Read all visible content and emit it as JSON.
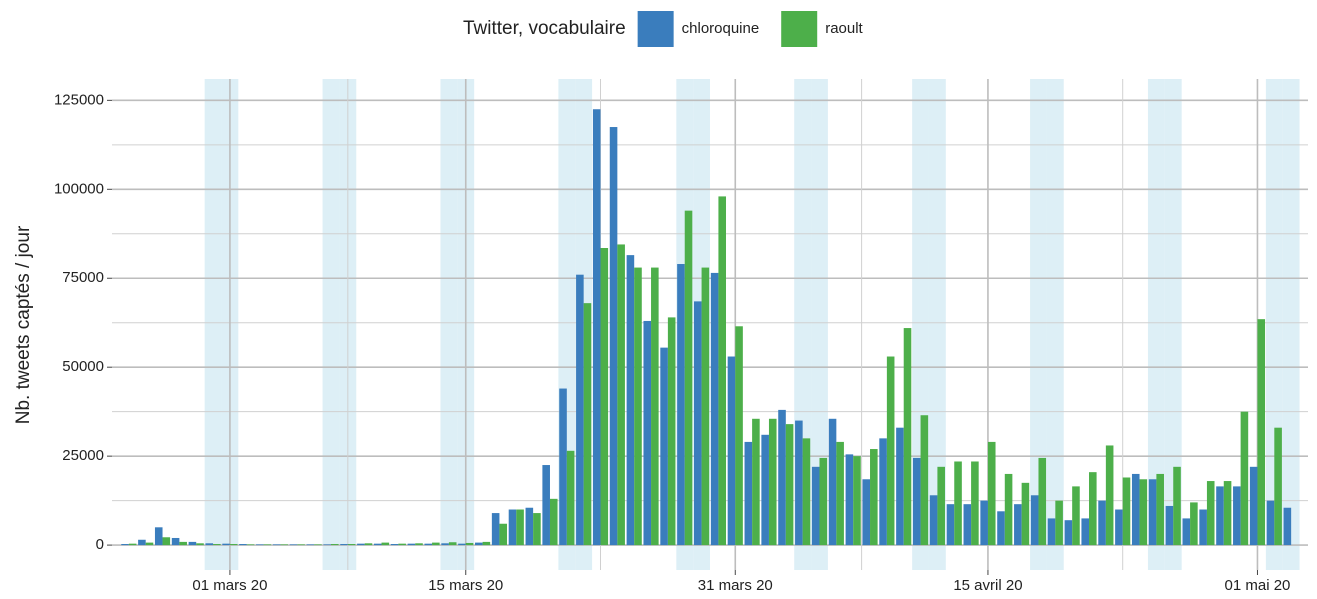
{
  "chart_data": {
    "type": "bar",
    "legend_title": "Twitter, vocabulaire",
    "y_label": "Nb. tweets captés / jour",
    "legend_position": "top",
    "grid": true,
    "weekend_shading": true,
    "x": [
      "2020-02-24",
      "2020-02-25",
      "2020-02-26",
      "2020-02-27",
      "2020-02-28",
      "2020-02-29",
      "2020-03-01",
      "2020-03-02",
      "2020-03-03",
      "2020-03-04",
      "2020-03-05",
      "2020-03-06",
      "2020-03-07",
      "2020-03-08",
      "2020-03-09",
      "2020-03-10",
      "2020-03-11",
      "2020-03-12",
      "2020-03-13",
      "2020-03-14",
      "2020-03-15",
      "2020-03-16",
      "2020-03-17",
      "2020-03-18",
      "2020-03-19",
      "2020-03-20",
      "2020-03-21",
      "2020-03-22",
      "2020-03-23",
      "2020-03-24",
      "2020-03-25",
      "2020-03-26",
      "2020-03-27",
      "2020-03-28",
      "2020-03-29",
      "2020-03-30",
      "2020-03-31",
      "2020-04-01",
      "2020-04-02",
      "2020-04-03",
      "2020-04-04",
      "2020-04-05",
      "2020-04-06",
      "2020-04-07",
      "2020-04-08",
      "2020-04-09",
      "2020-04-10",
      "2020-04-11",
      "2020-04-12",
      "2020-04-13",
      "2020-04-14",
      "2020-04-15",
      "2020-04-16",
      "2020-04-17",
      "2020-04-18",
      "2020-04-19",
      "2020-04-20",
      "2020-04-21",
      "2020-04-22",
      "2020-04-23",
      "2020-04-24",
      "2020-04-25",
      "2020-04-26",
      "2020-04-27",
      "2020-04-28",
      "2020-04-29",
      "2020-04-30",
      "2020-05-01",
      "2020-05-02",
      "2020-05-03"
    ],
    "series": [
      {
        "name": "chloroquine",
        "color": "#3a7dbd",
        "values": [
          300,
          1500,
          5000,
          2000,
          900,
          500,
          400,
          300,
          200,
          200,
          200,
          200,
          200,
          300,
          400,
          400,
          300,
          400,
          400,
          500,
          400,
          700,
          9000,
          10000,
          10500,
          22500,
          44000,
          76000,
          122500,
          117500,
          81500,
          63000,
          55500,
          79000,
          68500,
          76500,
          53000,
          29000,
          31000,
          38000,
          35000,
          22000,
          35500,
          25500,
          18500,
          30000,
          33000,
          24500,
          14000,
          11500,
          11500,
          12500,
          9500,
          11500,
          14000,
          7500,
          7000,
          7500,
          12500,
          10000,
          20000,
          18500,
          11000,
          7500,
          10000,
          16500,
          16500,
          22000,
          12500,
          10500
        ]
      },
      {
        "name": "raoult",
        "color": "#4daf4a",
        "values": [
          400,
          700,
          2200,
          900,
          500,
          300,
          300,
          200,
          200,
          200,
          200,
          200,
          300,
          300,
          500,
          700,
          400,
          500,
          700,
          800,
          600,
          900,
          6000,
          10000,
          9000,
          13000,
          26500,
          68000,
          83500,
          84500,
          78000,
          78000,
          64000,
          94000,
          78000,
          98000,
          61500,
          35500,
          35500,
          34000,
          30000,
          24500,
          29000,
          25000,
          27000,
          53000,
          61000,
          36500,
          22000,
          23500,
          23500,
          29000,
          20000,
          17500,
          24500,
          12500,
          16500,
          20500,
          28000,
          19000,
          18500,
          20000,
          22000,
          12000,
          18000,
          18000,
          37500,
          63500,
          33000,
          null
        ]
      }
    ],
    "xlim": [
      "2020-02-23",
      "2020-05-04"
    ],
    "xticks": [
      {
        "value": "2020-03-01",
        "label": "01 mars 20"
      },
      {
        "value": "2020-03-15",
        "label": "15 mars 20"
      },
      {
        "value": "2020-03-31",
        "label": "31 mars 20"
      },
      {
        "value": "2020-04-15",
        "label": "15 avril 20"
      },
      {
        "value": "2020-05-01",
        "label": "01 mai 20"
      }
    ],
    "ylim": [
      -7000,
      131000
    ],
    "yticks": [
      0,
      25000,
      50000,
      75000,
      100000,
      125000
    ]
  }
}
